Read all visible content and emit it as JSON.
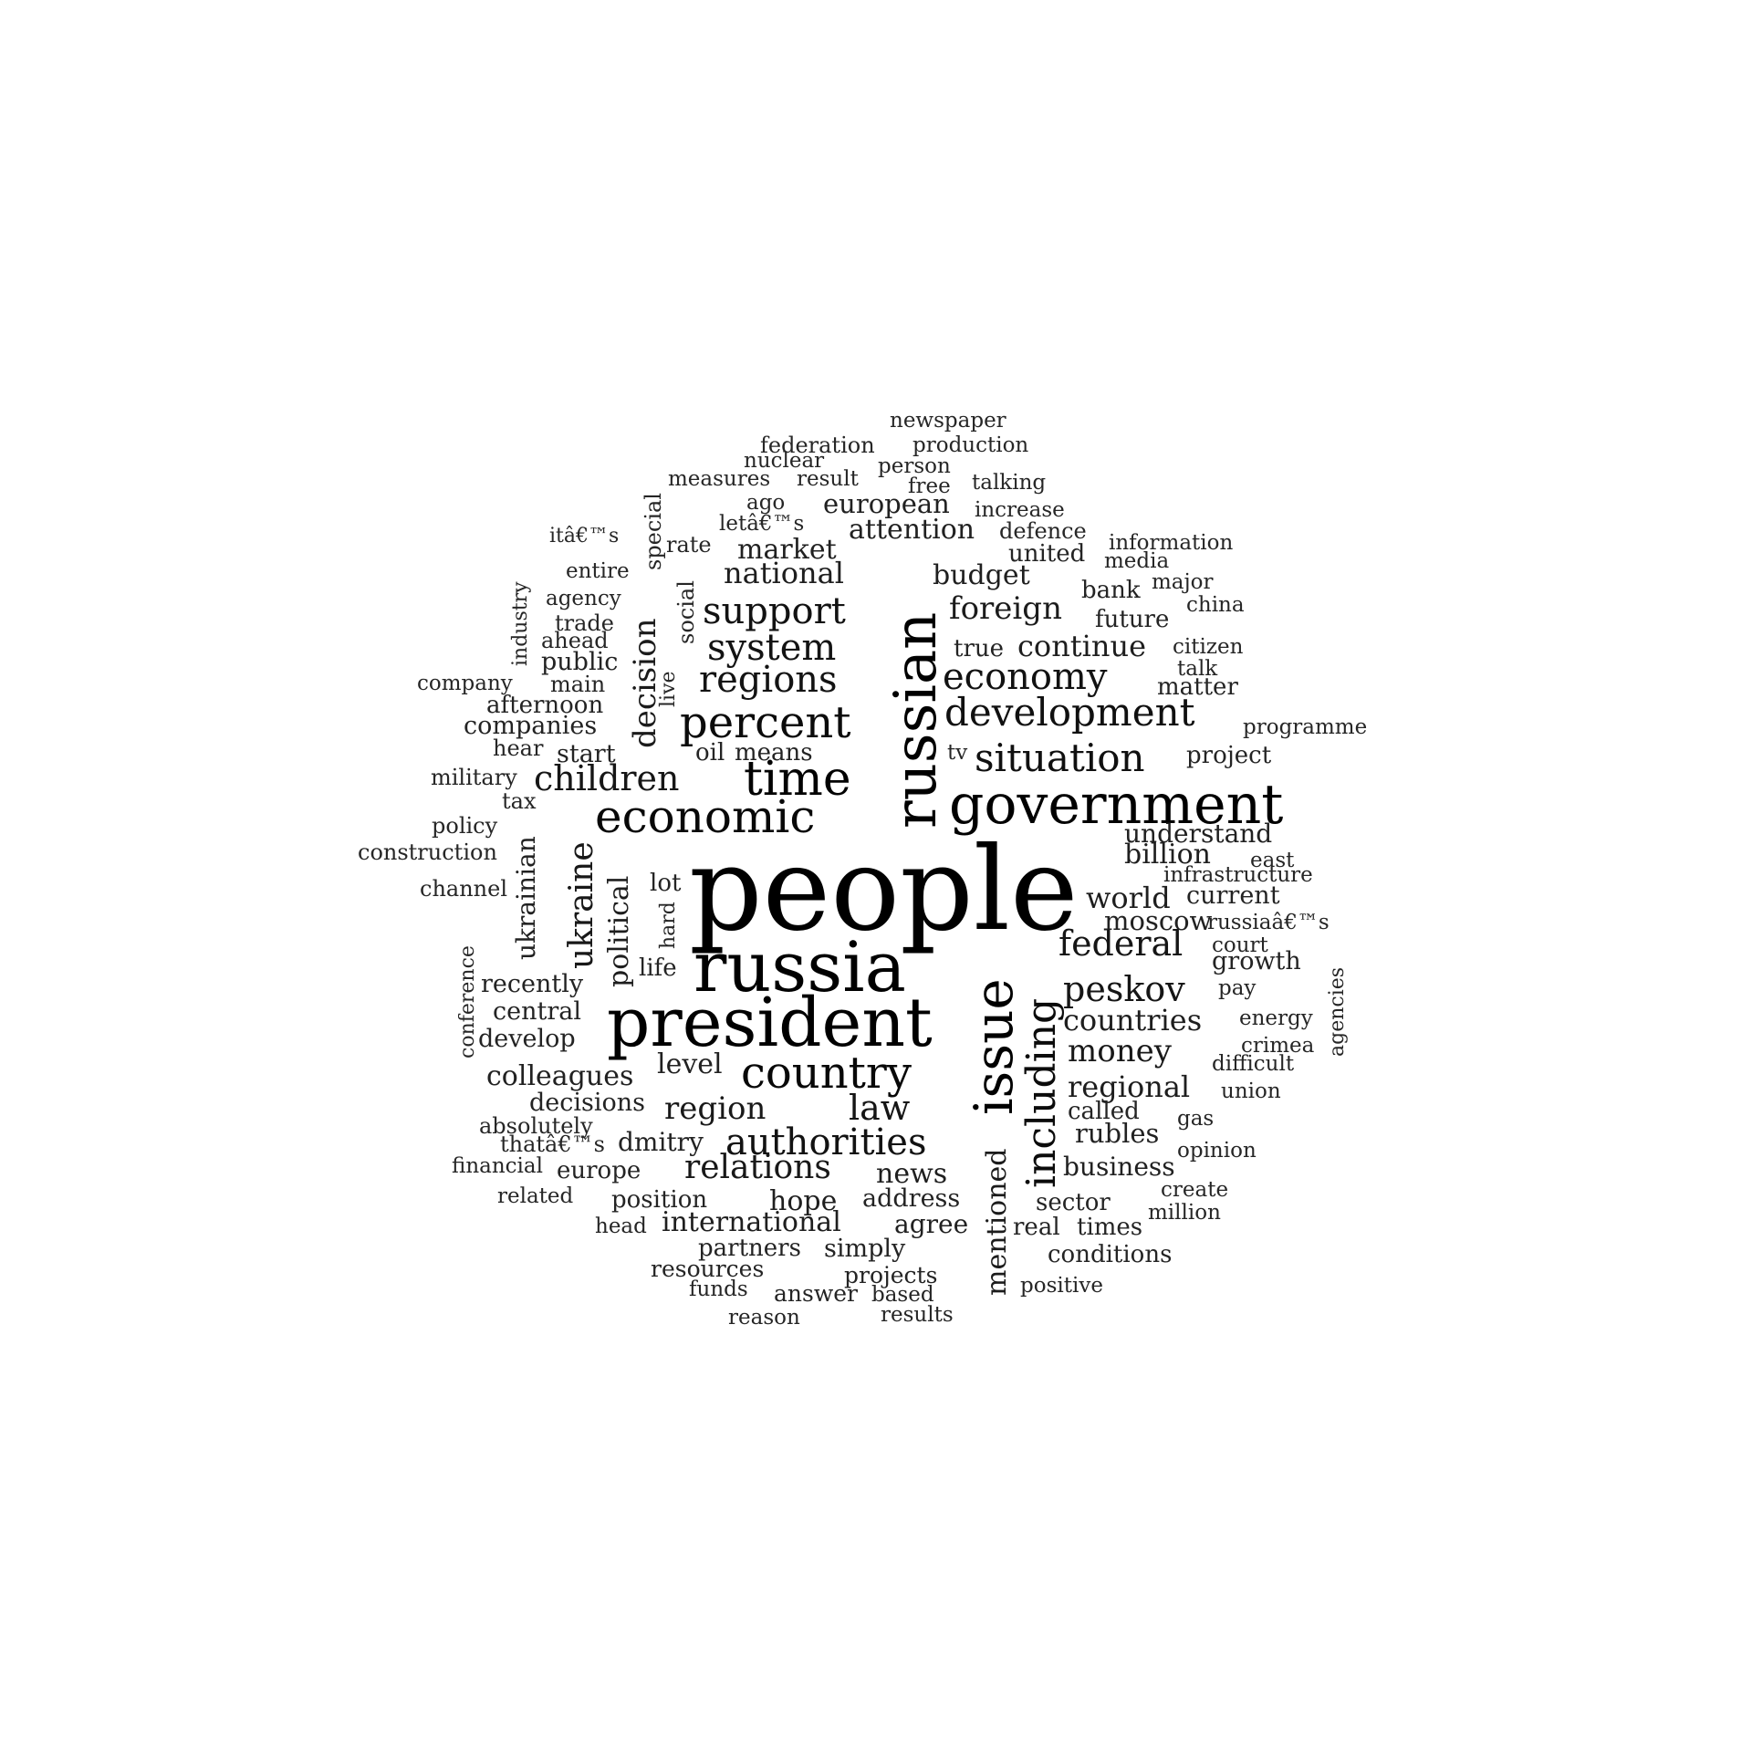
{
  "colors": {
    "background": "#ffffff",
    "text": "#000000"
  },
  "words": [
    {
      "text": "people",
      "weight": 1.0
    },
    {
      "text": "russia",
      "weight": 0.62
    },
    {
      "text": "president",
      "weight": 0.6
    },
    {
      "text": "russian",
      "weight": 0.62,
      "vertical": true
    },
    {
      "text": "issue",
      "weight": 0.52,
      "vertical": true
    },
    {
      "text": "government",
      "weight": 0.48
    },
    {
      "text": "time",
      "weight": 0.44
    },
    {
      "text": "economic",
      "weight": 0.4
    },
    {
      "text": "country",
      "weight": 0.4
    },
    {
      "text": "including",
      "weight": 0.38,
      "vertical": true
    },
    {
      "text": "percent",
      "weight": 0.38
    },
    {
      "text": "development",
      "weight": 0.35
    },
    {
      "text": "situation",
      "weight": 0.35
    },
    {
      "text": "authorities",
      "weight": 0.34
    },
    {
      "text": "economy",
      "weight": 0.34
    },
    {
      "text": "support",
      "weight": 0.34
    },
    {
      "text": "regions",
      "weight": 0.33
    },
    {
      "text": "system",
      "weight": 0.33
    },
    {
      "text": "federal",
      "weight": 0.32
    },
    {
      "text": "law",
      "weight": 0.32
    },
    {
      "text": "children",
      "weight": 0.31
    },
    {
      "text": "peskov",
      "weight": 0.31
    },
    {
      "text": "relations",
      "weight": 0.3
    },
    {
      "text": "ukraine",
      "weight": 0.3,
      "vertical": true
    },
    {
      "text": "decision",
      "weight": 0.28,
      "vertical": true
    },
    {
      "text": "money",
      "weight": 0.29
    },
    {
      "text": "region",
      "weight": 0.29
    },
    {
      "text": "foreign",
      "weight": 0.28
    },
    {
      "text": "mentioned",
      "weight": 0.27,
      "vertical": true
    },
    {
      "text": "political",
      "weight": 0.26,
      "vertical": true
    },
    {
      "text": "countries",
      "weight": 0.26
    },
    {
      "text": "continue",
      "weight": 0.26
    },
    {
      "text": "national",
      "weight": 0.26
    },
    {
      "text": "regional",
      "weight": 0.26
    },
    {
      "text": "world",
      "weight": 0.26
    },
    {
      "text": "budget",
      "weight": 0.25
    },
    {
      "text": "billion",
      "weight": 0.25
    },
    {
      "text": "hope",
      "weight": 0.25
    },
    {
      "text": "international",
      "weight": 0.25
    },
    {
      "text": "news",
      "weight": 0.25
    },
    {
      "text": "ukrainian",
      "weight": 0.24,
      "vertical": true
    },
    {
      "text": "attention",
      "weight": 0.24
    },
    {
      "text": "market",
      "weight": 0.24
    },
    {
      "text": "colleagues",
      "weight": 0.24
    },
    {
      "text": "level",
      "weight": 0.24
    },
    {
      "text": "moscow",
      "weight": 0.24
    },
    {
      "text": "rubles",
      "weight": 0.24
    },
    {
      "text": "european",
      "weight": 0.24
    },
    {
      "text": "understand",
      "weight": 0.24
    },
    {
      "text": "agree",
      "weight": 0.24
    },
    {
      "text": "business",
      "weight": 0.24
    },
    {
      "text": "current",
      "weight": 0.23
    },
    {
      "text": "dmitry",
      "weight": 0.23
    },
    {
      "text": "companies",
      "weight": 0.23
    },
    {
      "text": "growth",
      "weight": 0.23
    },
    {
      "text": "central",
      "weight": 0.23
    },
    {
      "text": "decisions",
      "weight": 0.23
    },
    {
      "text": "address",
      "weight": 0.23
    },
    {
      "text": "simply",
      "weight": 0.23
    },
    {
      "text": "start",
      "weight": 0.23
    },
    {
      "text": "public",
      "weight": 0.23
    },
    {
      "text": "means",
      "weight": 0.23
    },
    {
      "text": "recently",
      "weight": 0.23
    },
    {
      "text": "develop",
      "weight": 0.23
    },
    {
      "text": "position",
      "weight": 0.22
    },
    {
      "text": "partners",
      "weight": 0.22
    },
    {
      "text": "sector",
      "weight": 0.22
    },
    {
      "text": "matter",
      "weight": 0.22
    },
    {
      "text": "real",
      "weight": 0.22
    },
    {
      "text": "times",
      "weight": 0.22
    },
    {
      "text": "conditions",
      "weight": 0.22
    },
    {
      "text": "called",
      "weight": 0.22
    },
    {
      "text": "future",
      "weight": 0.22
    },
    {
      "text": "bank",
      "weight": 0.22
    },
    {
      "text": "united",
      "weight": 0.22
    },
    {
      "text": "true",
      "weight": 0.22
    },
    {
      "text": "project",
      "weight": 0.22
    },
    {
      "text": "lot",
      "weight": 0.22
    },
    {
      "text": "life",
      "weight": 0.22
    },
    {
      "text": "oil",
      "weight": 0.22
    },
    {
      "text": "europe",
      "weight": 0.22
    },
    {
      "text": "resources",
      "weight": 0.22
    },
    {
      "text": "answer",
      "weight": 0.22
    },
    {
      "text": "projects",
      "weight": 0.22
    },
    {
      "text": "afternoon",
      "weight": 0.22
    },
    {
      "text": "hear",
      "weight": 0.21
    },
    {
      "text": "military",
      "weight": 0.21
    },
    {
      "text": "tax",
      "weight": 0.21
    },
    {
      "text": "policy",
      "weight": 0.21
    },
    {
      "text": "construction",
      "weight": 0.21
    },
    {
      "text": "channel",
      "weight": 0.21
    },
    {
      "text": "absolutely",
      "weight": 0.21
    },
    {
      "text": "thatâ€™s",
      "weight": 0.21
    },
    {
      "text": "financial",
      "weight": 0.21
    },
    {
      "text": "related",
      "weight": 0.21
    },
    {
      "text": "head",
      "weight": 0.21
    },
    {
      "text": "funds",
      "weight": 0.21
    },
    {
      "text": "reason",
      "weight": 0.21
    },
    {
      "text": "based",
      "weight": 0.21
    },
    {
      "text": "results",
      "weight": 0.21
    },
    {
      "text": "positive",
      "weight": 0.21
    },
    {
      "text": "million",
      "weight": 0.21
    },
    {
      "text": "create",
      "weight": 0.21
    },
    {
      "text": "opinion",
      "weight": 0.21
    },
    {
      "text": "gas",
      "weight": 0.21
    },
    {
      "text": "union",
      "weight": 0.21
    },
    {
      "text": "difficult",
      "weight": 0.21
    },
    {
      "text": "crimea",
      "weight": 0.21
    },
    {
      "text": "energy",
      "weight": 0.21
    },
    {
      "text": "pay",
      "weight": 0.21
    },
    {
      "text": "court",
      "weight": 0.21
    },
    {
      "text": "russiaâ€™s",
      "weight": 0.21
    },
    {
      "text": "infrastructure",
      "weight": 0.21
    },
    {
      "text": "east",
      "weight": 0.21
    },
    {
      "text": "tv",
      "weight": 0.21
    },
    {
      "text": "programme",
      "weight": 0.21
    },
    {
      "text": "talk",
      "weight": 0.21
    },
    {
      "text": "citizen",
      "weight": 0.21
    },
    {
      "text": "china",
      "weight": 0.21
    },
    {
      "text": "major",
      "weight": 0.21
    },
    {
      "text": "media",
      "weight": 0.21
    },
    {
      "text": "information",
      "weight": 0.21
    },
    {
      "text": "defence",
      "weight": 0.21
    },
    {
      "text": "increase",
      "weight": 0.21
    },
    {
      "text": "talking",
      "weight": 0.21
    },
    {
      "text": "free",
      "weight": 0.21
    },
    {
      "text": "person",
      "weight": 0.21
    },
    {
      "text": "production",
      "weight": 0.21
    },
    {
      "text": "newspaper",
      "weight": 0.21
    },
    {
      "text": "federation",
      "weight": 0.21
    },
    {
      "text": "nuclear",
      "weight": 0.21
    },
    {
      "text": "measures",
      "weight": 0.21
    },
    {
      "text": "result",
      "weight": 0.21
    },
    {
      "text": "ago",
      "weight": 0.21
    },
    {
      "text": "letâ€™s",
      "weight": 0.21
    },
    {
      "text": "rate",
      "weight": 0.21
    },
    {
      "text": "itâ€™s",
      "weight": 0.21
    },
    {
      "text": "entire",
      "weight": 0.21
    },
    {
      "text": "agency",
      "weight": 0.21
    },
    {
      "text": "trade",
      "weight": 0.21
    },
    {
      "text": "ahead",
      "weight": 0.21
    },
    {
      "text": "company",
      "weight": 0.21
    },
    {
      "text": "main",
      "weight": 0.21
    },
    {
      "text": "special",
      "weight": 0.21,
      "vertical": true
    },
    {
      "text": "social",
      "weight": 0.21,
      "vertical": true
    },
    {
      "text": "industry",
      "weight": 0.21,
      "vertical": true
    },
    {
      "text": "live",
      "weight": 0.21,
      "vertical": true
    },
    {
      "text": "hard",
      "weight": 0.21,
      "vertical": true
    },
    {
      "text": "conference",
      "weight": 0.21,
      "vertical": true
    },
    {
      "text": "agencies",
      "weight": 0.21,
      "vertical": true
    }
  ]
}
